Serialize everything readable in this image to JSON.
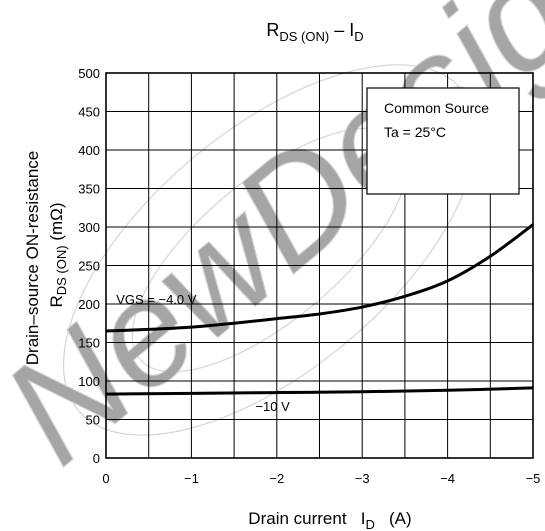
{
  "watermark_text": "NewDesign",
  "chart_data": {
    "type": "line",
    "title": {
      "main": "R",
      "sub1": "DS (ON)",
      "sep": " – I",
      "sub2": "D"
    },
    "xlabel": {
      "main": "Drain current   I",
      "sub": "D",
      "unit": "   (A)"
    },
    "ylabel": {
      "line1": "Drain–source ON-resistance",
      "line2_main": "R",
      "line2_sub": "DS (ON)",
      "line2_unit": "   (mΩ)"
    },
    "xlim": [
      0,
      -5
    ],
    "ylim": [
      0,
      500
    ],
    "x_ticks": [
      0,
      -1,
      -2,
      -3,
      -4,
      -5
    ],
    "x_tick_labels": [
      "0",
      "−1",
      "−2",
      "−3",
      "−4",
      "−5"
    ],
    "y_ticks": [
      0,
      50,
      100,
      150,
      200,
      250,
      300,
      350,
      400,
      450,
      500
    ],
    "y_tick_labels": [
      "0",
      "50",
      "100",
      "150",
      "200",
      "250",
      "300",
      "350",
      "400",
      "450",
      "500"
    ],
    "x_minor_step": 0.5,
    "grid": true,
    "legend_box": {
      "line1": "Common Source",
      "line2": "Ta = 25°C"
    },
    "series": [
      {
        "name": "VGS = −4.0 V",
        "x": [
          0,
          -0.5,
          -1,
          -1.5,
          -2,
          -2.5,
          -3,
          -3.5,
          -4,
          -4.5,
          -5
        ],
        "values": [
          165,
          167,
          170,
          175,
          181,
          187,
          196,
          210,
          230,
          262,
          303
        ]
      },
      {
        "name": "−10 V",
        "x": [
          0,
          -1,
          -2,
          -3,
          -4,
          -5
        ],
        "values": [
          83,
          84,
          85,
          86,
          88,
          91
        ]
      }
    ]
  }
}
